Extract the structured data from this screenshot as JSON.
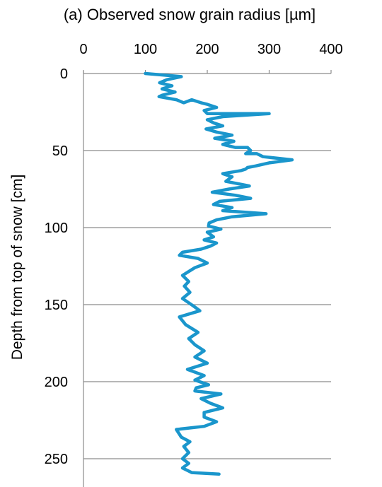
{
  "chart_data": {
    "type": "line",
    "title": "(a)  Observed snow grain radius [µm]",
    "xlabel": "",
    "ylabel": "Depth from top of snow [cm]",
    "x_axis_position": "top",
    "y_axis_inverted": true,
    "xlim": [
      0,
      400
    ],
    "ylim": [
      0,
      270
    ],
    "xticks": [
      0,
      100,
      200,
      300,
      400
    ],
    "yticks": [
      0,
      50,
      100,
      150,
      200,
      250
    ],
    "grid": "horizontal",
    "series_color": "#1a96cc",
    "series": [
      {
        "name": "",
        "points": [
          [
            100,
            0
          ],
          [
            158,
            2
          ],
          [
            135,
            4
          ],
          [
            123,
            6
          ],
          [
            143,
            8
          ],
          [
            127,
            10
          ],
          [
            148,
            12
          ],
          [
            128,
            14
          ],
          [
            122,
            15
          ],
          [
            150,
            17
          ],
          [
            162,
            19
          ],
          [
            175,
            17
          ],
          [
            190,
            19
          ],
          [
            200,
            20
          ],
          [
            215,
            22
          ],
          [
            195,
            24
          ],
          [
            200,
            26
          ],
          [
            300,
            26
          ],
          [
            225,
            28
          ],
          [
            200,
            30
          ],
          [
            210,
            32
          ],
          [
            225,
            34
          ],
          [
            198,
            36
          ],
          [
            215,
            38
          ],
          [
            240,
            40
          ],
          [
            212,
            42
          ],
          [
            243,
            44
          ],
          [
            225,
            46
          ],
          [
            245,
            48
          ],
          [
            265,
            48
          ],
          [
            270,
            50
          ],
          [
            262,
            52
          ],
          [
            280,
            52
          ],
          [
            290,
            54
          ],
          [
            337,
            56
          ],
          [
            300,
            58
          ],
          [
            278,
            60
          ],
          [
            265,
            61
          ],
          [
            262,
            62
          ],
          [
            255,
            63
          ],
          [
            225,
            65
          ],
          [
            240,
            67
          ],
          [
            230,
            70
          ],
          [
            268,
            73
          ],
          [
            235,
            75
          ],
          [
            208,
            77
          ],
          [
            245,
            79
          ],
          [
            270,
            81
          ],
          [
            220,
            83
          ],
          [
            210,
            85
          ],
          [
            240,
            87
          ],
          [
            225,
            89
          ],
          [
            295,
            91
          ],
          [
            240,
            93
          ],
          [
            215,
            95
          ],
          [
            203,
            97
          ],
          [
            202,
            99
          ],
          [
            222,
            101
          ],
          [
            200,
            103
          ],
          [
            210,
            106
          ],
          [
            195,
            108
          ],
          [
            215,
            110
          ],
          [
            205,
            112
          ],
          [
            190,
            114
          ],
          [
            160,
            116
          ],
          [
            155,
            118
          ],
          [
            185,
            120
          ],
          [
            200,
            123
          ],
          [
            180,
            126
          ],
          [
            160,
            131
          ],
          [
            170,
            135
          ],
          [
            163,
            138
          ],
          [
            172,
            142
          ],
          [
            160,
            146
          ],
          [
            178,
            151
          ],
          [
            188,
            154
          ],
          [
            155,
            158
          ],
          [
            165,
            163
          ],
          [
            185,
            168
          ],
          [
            170,
            172
          ],
          [
            180,
            176
          ],
          [
            195,
            180
          ],
          [
            180,
            184
          ],
          [
            200,
            188
          ],
          [
            168,
            192
          ],
          [
            195,
            196
          ],
          [
            180,
            199
          ],
          [
            202,
            202
          ],
          [
            182,
            204
          ],
          [
            180,
            206
          ],
          [
            222,
            208
          ],
          [
            190,
            211
          ],
          [
            205,
            214
          ],
          [
            225,
            217
          ],
          [
            195,
            220
          ],
          [
            195,
            223
          ],
          [
            215,
            226
          ],
          [
            195,
            229
          ],
          [
            150,
            231
          ],
          [
            158,
            236
          ],
          [
            172,
            239
          ],
          [
            162,
            242
          ],
          [
            170,
            246
          ],
          [
            160,
            250
          ],
          [
            170,
            253
          ],
          [
            160,
            256
          ],
          [
            175,
            259
          ],
          [
            219,
            260
          ]
        ]
      }
    ]
  }
}
